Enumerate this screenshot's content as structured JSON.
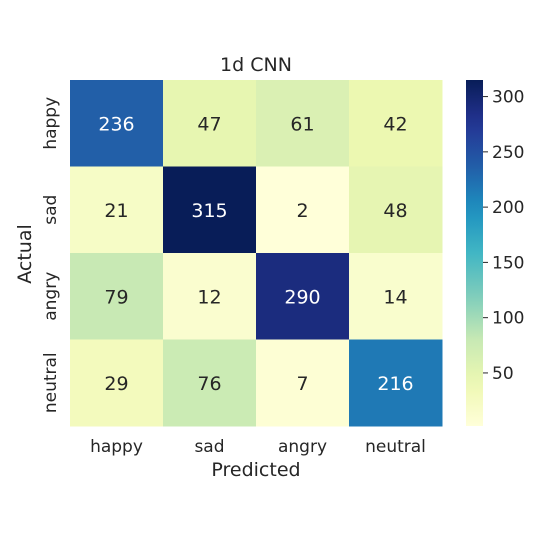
{
  "chart_data": {
    "type": "heatmap",
    "title": "1d CNN",
    "xlabel": "Predicted",
    "ylabel": "Actual",
    "x_categories": [
      "happy",
      "sad",
      "angry",
      "neutral"
    ],
    "y_categories": [
      "happy",
      "sad",
      "angry",
      "neutral"
    ],
    "values": [
      [
        236,
        47,
        61,
        42
      ],
      [
        21,
        315,
        2,
        48
      ],
      [
        79,
        12,
        290,
        14
      ],
      [
        29,
        76,
        7,
        216
      ]
    ],
    "colormap": "YlGnBu",
    "vmin": 2,
    "vmax": 315,
    "colorbar_ticks": [
      50,
      100,
      150,
      200,
      250,
      300
    ],
    "colorbar_tick_labels": [
      "50",
      "100",
      "150",
      "200",
      "250",
      "300"
    ]
  }
}
